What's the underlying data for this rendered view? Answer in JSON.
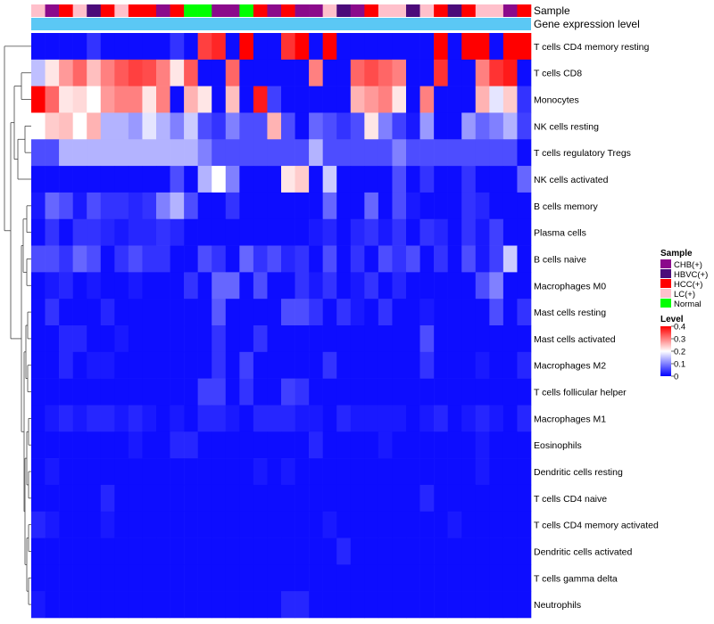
{
  "chart_data": {
    "type": "heatmap",
    "title": "",
    "color_scale": {
      "min": 0,
      "mid": 0.2,
      "max": 0.4,
      "low_color": "#0000ff",
      "mid_color": "#ffffff",
      "high_color": "#ff0000"
    },
    "annotation_tracks": [
      "Sample",
      "Gene expression level"
    ],
    "expression_track_color": "#5bc8f5",
    "sample_groups": [
      {
        "name": "CHB(+)",
        "color": "#8b0a8b"
      },
      {
        "name": "HBVC(+)",
        "color": "#4b0b7a"
      },
      {
        "name": "HCC(+)",
        "color": "#ff0000"
      },
      {
        "name": "LC(+)",
        "color": "#ffc0cb"
      },
      {
        "name": "Normal",
        "color": "#00ff00"
      }
    ],
    "samples": [
      "LC(+)",
      "CHB(+)",
      "HCC(+)",
      "LC(+)",
      "HBVC(+)",
      "HCC(+)",
      "LC(+)",
      "HCC(+)",
      "HCC(+)",
      "CHB(+)",
      "HCC(+)",
      "Normal",
      "Normal",
      "CHB(+)",
      "CHB(+)",
      "Normal",
      "HCC(+)",
      "CHB(+)",
      "HCC(+)",
      "CHB(+)",
      "CHB(+)",
      "LC(+)",
      "HBVC(+)",
      "CHB(+)",
      "HCC(+)",
      "LC(+)",
      "LC(+)",
      "HBVC(+)",
      "LC(+)",
      "HCC(+)",
      "HBVC(+)",
      "HCC(+)",
      "LC(+)",
      "LC(+)",
      "CHB(+)",
      "HCC(+)"
    ],
    "rows": [
      "T cells CD4 memory resting",
      "T cells CD8",
      "Monocytes",
      "NK cells resting",
      "T cells regulatory  Tregs",
      "NK cells activated",
      "B cells memory",
      "Plasma cells",
      "B cells naive",
      "Macrophages M0",
      "Mast cells resting",
      "Mast cells activated",
      "Macrophages M2",
      "T cells follicular helper",
      "Macrophages M1",
      "Eosinophils",
      "Dendritic cells resting",
      "T cells CD4 naive",
      "T cells CD4 memory activated",
      "Dendritic cells activated",
      "T cells gamma delta",
      "Neutrophils"
    ],
    "values": [
      [
        0.01,
        0.01,
        0.01,
        0.01,
        0.04,
        0.01,
        0.01,
        0.01,
        0.01,
        0.01,
        0.04,
        0.01,
        0.35,
        0.37,
        0.01,
        0.4,
        0.01,
        0.01,
        0.36,
        0.4,
        0.01,
        0.4,
        0.01,
        0.01,
        0.01,
        0.01,
        0.01,
        0.01,
        0.01,
        0.4,
        0.01,
        0.4,
        0.4,
        0.01,
        0.4,
        0.4
      ],
      [
        0.15,
        0.22,
        0.28,
        0.32,
        0.25,
        0.3,
        0.33,
        0.35,
        0.34,
        0.3,
        0.22,
        0.33,
        0.01,
        0.01,
        0.32,
        0.01,
        0.01,
        0.01,
        0.01,
        0.01,
        0.3,
        0.01,
        0.01,
        0.32,
        0.34,
        0.32,
        0.3,
        0.01,
        0.01,
        0.36,
        0.01,
        0.01,
        0.3,
        0.36,
        0.38,
        0.01
      ],
      [
        0.4,
        0.32,
        0.22,
        0.23,
        0.2,
        0.28,
        0.3,
        0.3,
        0.22,
        0.3,
        0.01,
        0.26,
        0.22,
        0.01,
        0.25,
        0.01,
        0.38,
        0.05,
        0.01,
        0.01,
        0.01,
        0.01,
        0.01,
        0.26,
        0.28,
        0.3,
        0.22,
        0.01,
        0.3,
        0.01,
        0.01,
        0.01,
        0.26,
        0.18,
        0.24,
        0.04
      ],
      [
        0.2,
        0.24,
        0.25,
        0.2,
        0.26,
        0.14,
        0.14,
        0.12,
        0.18,
        0.14,
        0.1,
        0.16,
        0.06,
        0.04,
        0.1,
        0.06,
        0.06,
        0.26,
        0.06,
        0.01,
        0.08,
        0.06,
        0.04,
        0.06,
        0.22,
        0.1,
        0.05,
        0.02,
        0.12,
        0.01,
        0.01,
        0.12,
        0.08,
        0.1,
        0.14,
        0.05
      ],
      [
        0.06,
        0.06,
        0.14,
        0.14,
        0.14,
        0.14,
        0.14,
        0.14,
        0.14,
        0.14,
        0.14,
        0.14,
        0.1,
        0.06,
        0.06,
        0.06,
        0.06,
        0.06,
        0.06,
        0.06,
        0.14,
        0.06,
        0.06,
        0.06,
        0.06,
        0.06,
        0.1,
        0.06,
        0.06,
        0.06,
        0.06,
        0.06,
        0.06,
        0.06,
        0.06,
        0.01
      ],
      [
        0.01,
        0.01,
        0.01,
        0.01,
        0.01,
        0.01,
        0.01,
        0.01,
        0.01,
        0.01,
        0.06,
        0.01,
        0.14,
        0.2,
        0.1,
        0.01,
        0.01,
        0.01,
        0.22,
        0.24,
        0.01,
        0.16,
        0.01,
        0.01,
        0.01,
        0.01,
        0.06,
        0.01,
        0.04,
        0.01,
        0.01,
        0.04,
        0.01,
        0.01,
        0.01,
        0.08
      ],
      [
        0.02,
        0.08,
        0.06,
        0.02,
        0.06,
        0.04,
        0.04,
        0.03,
        0.04,
        0.1,
        0.14,
        0.06,
        0.01,
        0.01,
        0.04,
        0.01,
        0.01,
        0.01,
        0.01,
        0.01,
        0.01,
        0.08,
        0.01,
        0.01,
        0.08,
        0.01,
        0.06,
        0.02,
        0.01,
        0.01,
        0.01,
        0.04,
        0.03,
        0.01,
        0.01,
        0.01
      ],
      [
        0.01,
        0.04,
        0.01,
        0.04,
        0.04,
        0.03,
        0.02,
        0.03,
        0.03,
        0.04,
        0.03,
        0.01,
        0.01,
        0.01,
        0.01,
        0.01,
        0.01,
        0.01,
        0.01,
        0.01,
        0.02,
        0.03,
        0.01,
        0.03,
        0.04,
        0.02,
        0.04,
        0.01,
        0.04,
        0.03,
        0.01,
        0.04,
        0.02,
        0.05,
        0.01,
        0.01
      ],
      [
        0.06,
        0.06,
        0.04,
        0.08,
        0.06,
        0.01,
        0.04,
        0.06,
        0.04,
        0.04,
        0.01,
        0.01,
        0.06,
        0.04,
        0.01,
        0.08,
        0.04,
        0.06,
        0.03,
        0.04,
        0.01,
        0.06,
        0.01,
        0.04,
        0.01,
        0.06,
        0.04,
        0.06,
        0.01,
        0.04,
        0.01,
        0.06,
        0.02,
        0.05,
        0.16,
        0.01
      ],
      [
        0.01,
        0.02,
        0.03,
        0.01,
        0.02,
        0.01,
        0.01,
        0.02,
        0.01,
        0.01,
        0.01,
        0.04,
        0.01,
        0.08,
        0.08,
        0.01,
        0.06,
        0.01,
        0.01,
        0.04,
        0.02,
        0.04,
        0.01,
        0.02,
        0.04,
        0.01,
        0.03,
        0.01,
        0.01,
        0.01,
        0.01,
        0.01,
        0.06,
        0.1,
        0.01,
        0.01
      ],
      [
        0.01,
        0.04,
        0.01,
        0.01,
        0.01,
        0.03,
        0.01,
        0.01,
        0.01,
        0.01,
        0.01,
        0.01,
        0.01,
        0.07,
        0.01,
        0.01,
        0.01,
        0.01,
        0.06,
        0.06,
        0.04,
        0.01,
        0.04,
        0.02,
        0.01,
        0.04,
        0.01,
        0.01,
        0.02,
        0.01,
        0.01,
        0.01,
        0.01,
        0.06,
        0.01,
        0.04
      ],
      [
        0.01,
        0.01,
        0.03,
        0.03,
        0.01,
        0.01,
        0.02,
        0.01,
        0.01,
        0.01,
        0.01,
        0.01,
        0.01,
        0.04,
        0.01,
        0.01,
        0.04,
        0.01,
        0.01,
        0.01,
        0.01,
        0.01,
        0.01,
        0.01,
        0.01,
        0.01,
        0.01,
        0.01,
        0.06,
        0.01,
        0.01,
        0.01,
        0.01,
        0.01,
        0.01,
        0.01
      ],
      [
        0.01,
        0.01,
        0.03,
        0.01,
        0.02,
        0.02,
        0.01,
        0.01,
        0.01,
        0.01,
        0.01,
        0.01,
        0.01,
        0.04,
        0.01,
        0.05,
        0.01,
        0.01,
        0.01,
        0.01,
        0.01,
        0.04,
        0.01,
        0.01,
        0.01,
        0.01,
        0.01,
        0.01,
        0.04,
        0.01,
        0.01,
        0.01,
        0.02,
        0.01,
        0.01,
        0.03
      ],
      [
        0.01,
        0.01,
        0.01,
        0.01,
        0.01,
        0.01,
        0.01,
        0.01,
        0.01,
        0.01,
        0.01,
        0.01,
        0.05,
        0.05,
        0.01,
        0.04,
        0.01,
        0.01,
        0.05,
        0.04,
        0.01,
        0.01,
        0.01,
        0.01,
        0.01,
        0.01,
        0.01,
        0.01,
        0.01,
        0.01,
        0.01,
        0.01,
        0.01,
        0.01,
        0.01,
        0.01
      ],
      [
        0.01,
        0.02,
        0.03,
        0.02,
        0.03,
        0.03,
        0.02,
        0.03,
        0.02,
        0.01,
        0.02,
        0.01,
        0.03,
        0.03,
        0.02,
        0.01,
        0.03,
        0.03,
        0.03,
        0.02,
        0.02,
        0.01,
        0.03,
        0.02,
        0.02,
        0.02,
        0.02,
        0.01,
        0.02,
        0.03,
        0.01,
        0.02,
        0.03,
        0.02,
        0.01,
        0.03
      ],
      [
        0.01,
        0.01,
        0.01,
        0.01,
        0.01,
        0.01,
        0.01,
        0.02,
        0.01,
        0.01,
        0.03,
        0.03,
        0.01,
        0.01,
        0.01,
        0.01,
        0.01,
        0.01,
        0.01,
        0.01,
        0.03,
        0.01,
        0.01,
        0.01,
        0.01,
        0.02,
        0.01,
        0.01,
        0.01,
        0.01,
        0.01,
        0.01,
        0.02,
        0.01,
        0.01,
        0.01
      ],
      [
        0.01,
        0.02,
        0.01,
        0.01,
        0.01,
        0.01,
        0.01,
        0.01,
        0.01,
        0.01,
        0.01,
        0.01,
        0.01,
        0.01,
        0.01,
        0.01,
        0.02,
        0.01,
        0.02,
        0.01,
        0.01,
        0.01,
        0.01,
        0.01,
        0.01,
        0.01,
        0.01,
        0.01,
        0.01,
        0.01,
        0.01,
        0.01,
        0.02,
        0.01,
        0.01,
        0.01
      ],
      [
        0.01,
        0.01,
        0.01,
        0.01,
        0.01,
        0.03,
        0.01,
        0.01,
        0.01,
        0.01,
        0.01,
        0.01,
        0.01,
        0.01,
        0.01,
        0.01,
        0.01,
        0.01,
        0.01,
        0.01,
        0.01,
        0.01,
        0.01,
        0.01,
        0.01,
        0.01,
        0.01,
        0.01,
        0.03,
        0.01,
        0.01,
        0.01,
        0.01,
        0.01,
        0.01,
        0.01
      ],
      [
        0.03,
        0.02,
        0.01,
        0.01,
        0.01,
        0.02,
        0.01,
        0.01,
        0.01,
        0.01,
        0.01,
        0.01,
        0.01,
        0.01,
        0.01,
        0.01,
        0.01,
        0.01,
        0.01,
        0.01,
        0.01,
        0.02,
        0.01,
        0.01,
        0.01,
        0.01,
        0.01,
        0.01,
        0.01,
        0.01,
        0.02,
        0.01,
        0.01,
        0.01,
        0.01,
        0.01
      ],
      [
        0.01,
        0.01,
        0.01,
        0.01,
        0.01,
        0.01,
        0.01,
        0.01,
        0.01,
        0.01,
        0.01,
        0.01,
        0.01,
        0.01,
        0.01,
        0.01,
        0.01,
        0.01,
        0.01,
        0.01,
        0.01,
        0.01,
        0.03,
        0.01,
        0.01,
        0.01,
        0.01,
        0.01,
        0.01,
        0.01,
        0.01,
        0.01,
        0.01,
        0.01,
        0.01,
        0.01
      ],
      [
        0.01,
        0.01,
        0.01,
        0.01,
        0.01,
        0.01,
        0.01,
        0.01,
        0.01,
        0.01,
        0.01,
        0.01,
        0.01,
        0.01,
        0.01,
        0.01,
        0.01,
        0.01,
        0.01,
        0.01,
        0.01,
        0.01,
        0.01,
        0.01,
        0.01,
        0.01,
        0.01,
        0.01,
        0.01,
        0.01,
        0.01,
        0.01,
        0.01,
        0.01,
        0.01,
        0.01
      ],
      [
        0.02,
        0.01,
        0.01,
        0.01,
        0.01,
        0.01,
        0.01,
        0.01,
        0.01,
        0.01,
        0.01,
        0.01,
        0.01,
        0.01,
        0.01,
        0.01,
        0.01,
        0.01,
        0.03,
        0.03,
        0.01,
        0.01,
        0.01,
        0.01,
        0.01,
        0.01,
        0.01,
        0.01,
        0.01,
        0.01,
        0.01,
        0.01,
        0.01,
        0.01,
        0.01,
        0.01
      ]
    ]
  },
  "legend": {
    "sample_title": "Sample",
    "level_title": "Level",
    "level_ticks": [
      "0.4",
      "0.3",
      "0.2",
      "0.1",
      "0"
    ]
  }
}
